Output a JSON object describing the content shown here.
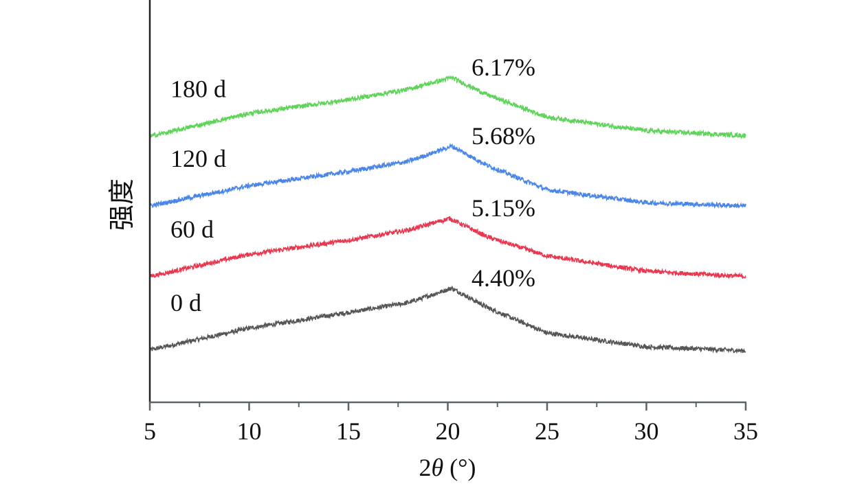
{
  "chart_data": {
    "type": "line",
    "title": "",
    "xlabel": "2θ (°)",
    "xlabel_main": "2",
    "xlabel_theta": "θ",
    "xlabel_unit": " (°)",
    "ylabel": "强度",
    "xlim": [
      5,
      35
    ],
    "ylim": [
      0,
      100
    ],
    "y_units": "relative intensity (a.u., offset stacked)",
    "x_ticks": [
      5,
      10,
      15,
      20,
      25,
      30,
      35
    ],
    "x_tick_labels": [
      "5",
      "10",
      "15",
      "20",
      "25",
      "30",
      "35"
    ],
    "x_minor_ticks": [
      7.5,
      12.5,
      17.5,
      22.5,
      27.5,
      32.5
    ],
    "grid": false,
    "legend": "none (inline labels at left)",
    "series": [
      {
        "name": "0 d",
        "annotation": "4.40%",
        "color": "#555555",
        "x": [
          5,
          10,
          15,
          18,
          20.2,
          22,
          25,
          30,
          35
        ],
        "y": [
          13.3,
          18.7,
          22.6,
          25.0,
          28.6,
          23.8,
          17.5,
          14.1,
          13.1
        ]
      },
      {
        "name": "60 d",
        "annotation": "5.15%",
        "color": "#e8384f",
        "x": [
          5,
          10,
          15,
          18,
          20.1,
          22,
          25,
          30,
          35
        ],
        "y": [
          31.5,
          37.0,
          40.5,
          43.0,
          45.9,
          41.3,
          36.6,
          32.8,
          31.5
        ]
      },
      {
        "name": "120 d",
        "annotation": "5.68%",
        "color": "#4a86e8",
        "x": [
          5,
          10,
          15,
          18,
          20.2,
          22,
          25,
          30,
          35
        ],
        "y": [
          49.0,
          54.0,
          57.5,
          60.0,
          63.8,
          59.0,
          53.0,
          49.8,
          49.0
        ]
      },
      {
        "name": "180 d",
        "annotation": "6.17%",
        "color": "#5fd35a",
        "x": [
          5,
          10,
          15,
          18,
          20.2,
          22,
          25,
          30,
          35
        ],
        "y": [
          66.2,
          71.9,
          75.3,
          77.9,
          80.8,
          76.5,
          71.0,
          67.6,
          66.4
        ]
      }
    ]
  }
}
